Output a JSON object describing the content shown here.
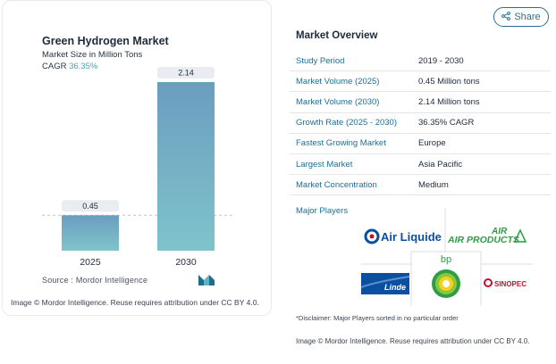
{
  "header": {
    "share_label": "Share"
  },
  "chart": {
    "title": "Green Hydrogen Market",
    "subtitle": "Market Size in Million Tons",
    "cagr_label": "CAGR",
    "cagr_value": "36.35%",
    "source": "Source :  Mordor Intelligence",
    "attribution": "Image © Mordor Intelligence. Reuse requires attribution under CC BY 4.0."
  },
  "chart_data": {
    "type": "bar",
    "categories": [
      "2025",
      "2030"
    ],
    "values": [
      0.45,
      2.14
    ],
    "value_labels": [
      "0.45",
      "2.14"
    ],
    "title": "Green Hydrogen Market",
    "subtitle": "Market Size in Million Tons",
    "ylim": [
      0,
      2.14
    ],
    "grid": false,
    "colors": {
      "bar_top": "#6b9dbf",
      "bar_bottom": "#7fc4cc"
    }
  },
  "overview": {
    "title": "Market Overview",
    "rows": [
      {
        "key": "Study Period",
        "value": "2019 - 2030"
      },
      {
        "key": "Market Volume (2025)",
        "value": "0.45 Million tons"
      },
      {
        "key": "Market Volume (2030)",
        "value": "2.14 Million tons"
      },
      {
        "key": "Growth Rate (2025 - 2030)",
        "value": "36.35% CAGR"
      },
      {
        "key": "Fastest Growing Market",
        "value": "Europe"
      },
      {
        "key": "Largest Market",
        "value": "Asia Pacific"
      },
      {
        "key": "Market Concentration",
        "value": "Medium"
      }
    ],
    "major_players_label": "Major Players",
    "players": [
      "Air Liquide",
      "AIR PRODUCTS",
      "Linde",
      "bp",
      "SINOPEC"
    ],
    "disclaimer": "*Disclaimer: Major Players sorted in no particular order",
    "attribution": "Image © Mordor Intelligence. Reuse requires attribution under CC BY 4.0."
  },
  "colors": {
    "accent": "#1b6f95",
    "brand_blue": "#0b4fa0",
    "brand_green": "#2e9e45",
    "sinopec_red": "#c8102e"
  }
}
